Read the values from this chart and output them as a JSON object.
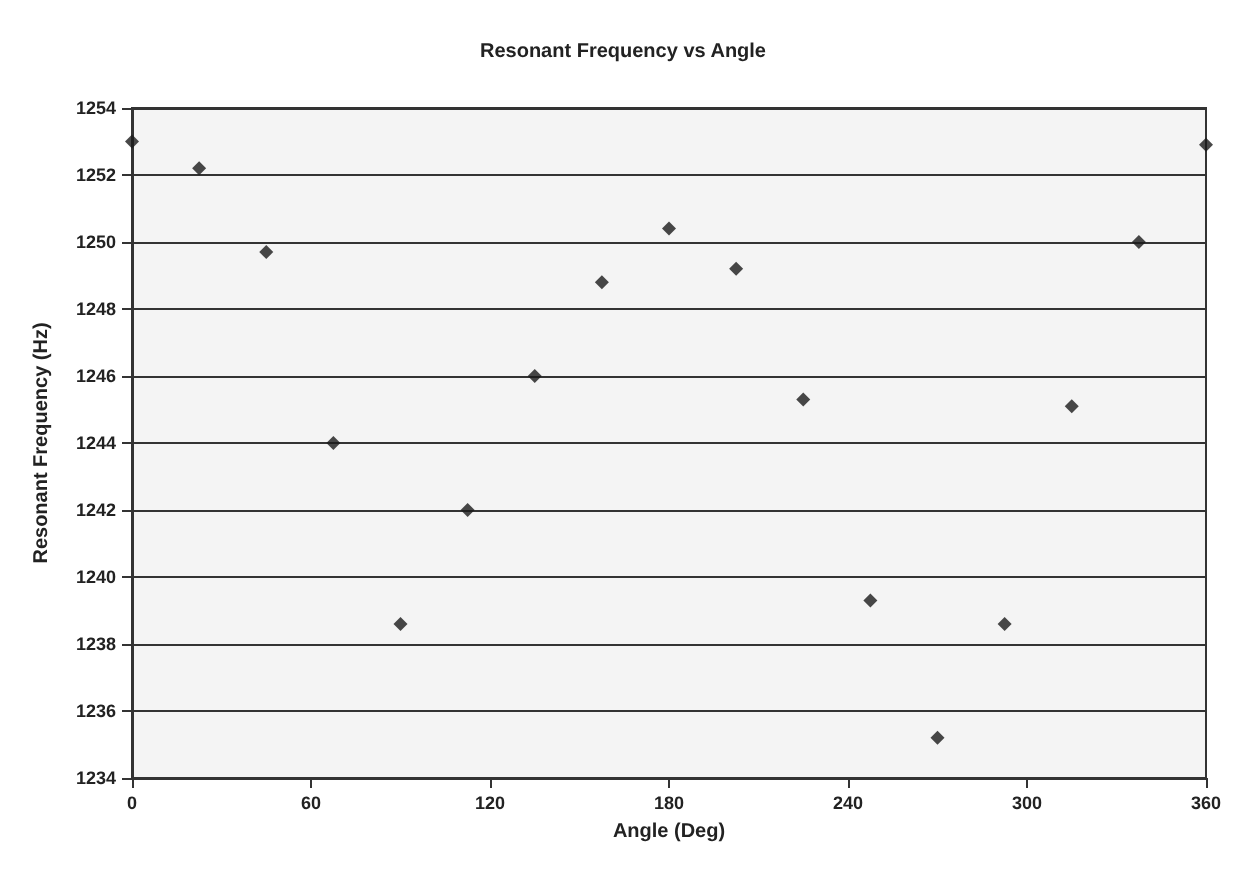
{
  "chart_data": {
    "type": "scatter",
    "title": "Resonant Frequency vs Angle",
    "xlabel": "Angle (Deg)",
    "ylabel": "Resonant Frequency (Hz)",
    "x": [
      0,
      22.5,
      45,
      67.5,
      90,
      112.5,
      135,
      157.5,
      180,
      202.5,
      225,
      247.5,
      270,
      292.5,
      315,
      337.5,
      360
    ],
    "series": [
      {
        "color": "#1a1a1a",
        "values": [
          1253,
          1252.2,
          1249.7,
          1244,
          1238.6,
          1242,
          1246,
          1248.8,
          1250.4,
          1249.2,
          1245.3,
          1239.3,
          1235.2,
          1238.6,
          1245.1,
          1250,
          1252.9
        ]
      }
    ],
    "xlim": [
      0,
      360
    ],
    "xticks": [
      0,
      60,
      120,
      180,
      240,
      300,
      360
    ],
    "ylim": [
      1234,
      1254
    ],
    "yticks": [
      1234,
      1236,
      1238,
      1240,
      1242,
      1244,
      1246,
      1248,
      1250,
      1252,
      1254
    ],
    "grid": "y",
    "marker": "diamond"
  }
}
